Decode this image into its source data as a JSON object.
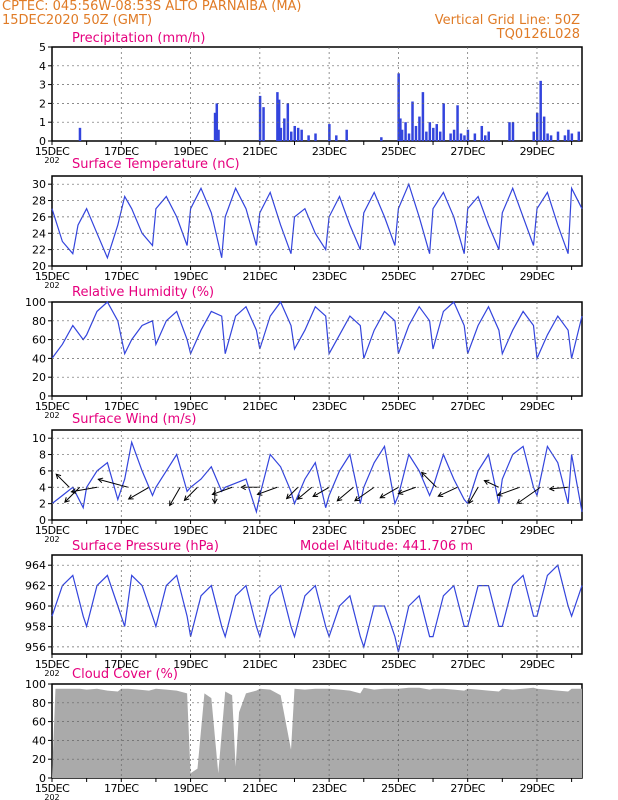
{
  "header": {
    "line1": "CPTEC:  045:56W-08:53S  ALTO PARNAIBA (MA)",
    "line2": "15DEC2020 50Z (GMT)",
    "grid_note": "Vertical Grid Line: 50Z",
    "code": "TQ0126L028",
    "model_altitude": "Model Altitude: 441.706 m"
  },
  "colors": {
    "header": "#e07b26",
    "title": "#e6007e",
    "line": "#3344dd",
    "bar": "#3344dd",
    "cloud": "#aaaaaa",
    "arrow": "#000000"
  },
  "x_axis": {
    "labels": [
      "15DEC",
      "17DEC",
      "19DEC",
      "21DEC",
      "23DEC",
      "25DEC",
      "27DEC",
      "29DEC"
    ],
    "label_days": [
      0,
      2,
      4,
      6,
      8,
      10,
      12,
      14
    ],
    "day_range": [
      0,
      15.3
    ],
    "year_fragment": "202"
  },
  "chart_data": [
    {
      "type": "bar",
      "title": "Precipitation (mm/h)",
      "ylim": [
        0,
        5
      ],
      "yticks": [
        0,
        1,
        2,
        3,
        4,
        5
      ],
      "x": [
        0.8,
        4.7,
        4.75,
        4.8,
        6.0,
        6.1,
        6.5,
        6.55,
        6.6,
        6.7,
        6.8,
        6.9,
        7.0,
        7.1,
        7.2,
        7.4,
        7.6,
        8.0,
        8.2,
        8.5,
        9.5,
        10.0,
        10.05,
        10.1,
        10.2,
        10.3,
        10.4,
        10.5,
        10.6,
        10.7,
        10.8,
        10.9,
        11.0,
        11.1,
        11.2,
        11.3,
        11.5,
        11.6,
        11.7,
        11.8,
        11.9,
        12.0,
        12.2,
        12.4,
        12.5,
        12.6,
        13.2,
        13.3,
        13.9,
        14.0,
        14.1,
        14.2,
        14.3,
        14.4,
        14.6,
        14.8,
        14.9,
        15.0,
        15.2
      ],
      "values": [
        0.7,
        1.5,
        2.0,
        0.6,
        2.4,
        1.8,
        2.6,
        2.2,
        0.7,
        1.2,
        2.0,
        0.5,
        0.8,
        0.7,
        0.6,
        0.3,
        0.4,
        0.9,
        0.3,
        0.6,
        0.2,
        3.6,
        1.2,
        0.6,
        1.0,
        0.4,
        2.1,
        0.8,
        1.3,
        2.6,
        0.5,
        1.0,
        0.7,
        0.9,
        0.5,
        2.0,
        0.4,
        0.6,
        1.9,
        0.4,
        0.3,
        0.6,
        0.4,
        0.8,
        0.3,
        0.5,
        1.0,
        1.0,
        0.5,
        1.5,
        3.2,
        1.3,
        0.4,
        0.3,
        0.5,
        0.3,
        0.6,
        0.4,
        0.5
      ]
    },
    {
      "type": "line",
      "title": "Surface Temperature (nC)",
      "ylim": [
        20,
        31
      ],
      "yticks": [
        20,
        22,
        24,
        26,
        28,
        30
      ],
      "x": [
        0,
        0.3,
        0.6,
        0.75,
        1.0,
        1.3,
        1.6,
        1.9,
        2.1,
        2.3,
        2.6,
        2.9,
        3.0,
        3.3,
        3.6,
        3.9,
        4.0,
        4.3,
        4.6,
        4.9,
        5.0,
        5.3,
        5.6,
        5.9,
        6.0,
        6.3,
        6.6,
        6.9,
        7.0,
        7.3,
        7.6,
        7.9,
        8.0,
        8.3,
        8.6,
        8.9,
        9.0,
        9.3,
        9.6,
        9.9,
        10.0,
        10.3,
        10.6,
        10.9,
        11.0,
        11.3,
        11.6,
        11.9,
        12.0,
        12.3,
        12.6,
        12.9,
        13.0,
        13.3,
        13.6,
        13.9,
        14.0,
        14.3,
        14.6,
        14.9,
        15.0,
        15.3
      ],
      "values": [
        27,
        23,
        21.5,
        25,
        27,
        24,
        21,
        25,
        28.5,
        27,
        24,
        22.5,
        27,
        28.5,
        26,
        22.5,
        27,
        29.5,
        26.5,
        21,
        26,
        29.5,
        27,
        22.5,
        26.5,
        29,
        25,
        21.5,
        26,
        27,
        24,
        22,
        26,
        28.5,
        25,
        22,
        26.5,
        29,
        26,
        22.5,
        27,
        30,
        26,
        21.5,
        27,
        29,
        26,
        21.5,
        27,
        28.5,
        25,
        22,
        26.5,
        29.5,
        26,
        22.5,
        27,
        29,
        25,
        21.5,
        29.5,
        27
      ]
    },
    {
      "type": "line",
      "title": "Relative Humidity (%)",
      "ylim": [
        0,
        100
      ],
      "yticks": [
        0,
        20,
        40,
        60,
        80,
        100
      ],
      "x": [
        0,
        0.3,
        0.6,
        0.9,
        1.0,
        1.3,
        1.6,
        1.9,
        2.1,
        2.3,
        2.6,
        2.9,
        3.0,
        3.3,
        3.6,
        3.9,
        4.0,
        4.3,
        4.6,
        4.9,
        5.0,
        5.3,
        5.6,
        5.9,
        6.0,
        6.3,
        6.6,
        6.9,
        7.0,
        7.3,
        7.6,
        7.9,
        8.0,
        8.3,
        8.6,
        8.9,
        9.0,
        9.3,
        9.6,
        9.9,
        10.0,
        10.3,
        10.6,
        10.9,
        11.0,
        11.3,
        11.6,
        11.9,
        12.0,
        12.3,
        12.6,
        12.9,
        13.0,
        13.3,
        13.6,
        13.9,
        14.0,
        14.3,
        14.6,
        14.9,
        15.0,
        15.3
      ],
      "values": [
        40,
        55,
        75,
        60,
        65,
        90,
        100,
        80,
        45,
        60,
        75,
        80,
        55,
        80,
        90,
        60,
        45,
        70,
        90,
        85,
        45,
        85,
        95,
        70,
        50,
        85,
        100,
        75,
        50,
        70,
        95,
        85,
        45,
        65,
        85,
        75,
        40,
        70,
        90,
        80,
        45,
        75,
        95,
        80,
        50,
        90,
        100,
        75,
        45,
        75,
        95,
        70,
        45,
        70,
        90,
        75,
        40,
        65,
        85,
        70,
        40,
        85
      ]
    },
    {
      "type": "line",
      "title": "Surface Wind (m/s)",
      "ylim": [
        0,
        11
      ],
      "yticks": [
        0,
        2,
        4,
        6,
        8,
        10
      ],
      "x": [
        0,
        0.3,
        0.6,
        0.9,
        1.0,
        1.3,
        1.6,
        1.9,
        2.1,
        2.3,
        2.6,
        2.9,
        3.0,
        3.3,
        3.6,
        3.9,
        4.0,
        4.3,
        4.6,
        4.9,
        5.0,
        5.3,
        5.6,
        5.9,
        6.0,
        6.3,
        6.6,
        6.9,
        7.0,
        7.3,
        7.6,
        7.9,
        8.0,
        8.3,
        8.6,
        8.9,
        9.0,
        9.3,
        9.6,
        9.9,
        10.0,
        10.3,
        10.6,
        10.9,
        11.0,
        11.3,
        11.6,
        11.9,
        12.0,
        12.3,
        12.6,
        12.9,
        13.0,
        13.3,
        13.6,
        13.9,
        14.0,
        14.3,
        14.6,
        14.9,
        15.0,
        15.3
      ],
      "values": [
        2,
        3,
        4,
        1.5,
        4,
        6,
        7,
        2.5,
        5,
        9.5,
        6,
        3,
        4,
        6,
        8,
        3.5,
        4,
        5,
        6.5,
        3.5,
        4,
        4.5,
        5,
        1,
        3,
        8,
        6.5,
        3.5,
        2,
        5,
        7,
        1.5,
        3,
        6,
        8,
        2,
        4,
        7,
        9,
        2,
        3,
        8,
        6,
        3,
        4,
        8,
        5,
        2.5,
        2,
        6,
        8,
        2,
        5,
        8,
        9,
        4,
        3,
        9,
        7,
        2,
        8,
        1
      ],
      "arrows": [
        {
          "day": 0.5,
          "speed": 2.5,
          "angle": 135
        },
        {
          "day": 0.8,
          "speed": 3.0,
          "angle": 225
        },
        {
          "day": 1.3,
          "speed": 4.0,
          "angle": 190
        },
        {
          "day": 2.2,
          "speed": 5.0,
          "angle": 165
        },
        {
          "day": 2.8,
          "speed": 3.5,
          "angle": 210
        },
        {
          "day": 3.7,
          "speed": 3.0,
          "angle": 240
        },
        {
          "day": 4.2,
          "speed": 2.5,
          "angle": 225
        },
        {
          "day": 4.7,
          "speed": 2.0,
          "angle": 270
        },
        {
          "day": 5.2,
          "speed": 3.0,
          "angle": 200
        },
        {
          "day": 6.0,
          "speed": 2.5,
          "angle": 180
        },
        {
          "day": 6.5,
          "speed": 3.0,
          "angle": 200
        },
        {
          "day": 7.1,
          "speed": 2.0,
          "angle": 225
        },
        {
          "day": 7.5,
          "speed": 2.5,
          "angle": 220
        },
        {
          "day": 8.0,
          "speed": 2.5,
          "angle": 210
        },
        {
          "day": 8.7,
          "speed": 3.0,
          "angle": 220
        },
        {
          "day": 9.3,
          "speed": 3.5,
          "angle": 215
        },
        {
          "day": 10.0,
          "speed": 3.0,
          "angle": 210
        },
        {
          "day": 10.5,
          "speed": 2.5,
          "angle": 200
        },
        {
          "day": 11.1,
          "speed": 3.0,
          "angle": 135
        },
        {
          "day": 11.7,
          "speed": 3.0,
          "angle": 205
        },
        {
          "day": 12.3,
          "speed": 2.5,
          "angle": 240
        },
        {
          "day": 12.9,
          "speed": 2.0,
          "angle": 155
        },
        {
          "day": 13.5,
          "speed": 3.5,
          "angle": 200
        },
        {
          "day": 14.1,
          "speed": 4.5,
          "angle": 215
        },
        {
          "day": 14.9,
          "speed": 2.5,
          "angle": 185
        }
      ]
    },
    {
      "type": "line",
      "title": "Surface Pressure (hPa)",
      "ylim": [
        955.3,
        965
      ],
      "yticks": [
        956,
        958,
        960,
        962,
        964
      ],
      "x": [
        0,
        0.3,
        0.6,
        0.9,
        1.0,
        1.3,
        1.6,
        1.9,
        2.1,
        2.3,
        2.6,
        2.9,
        3.0,
        3.3,
        3.6,
        3.9,
        4.0,
        4.3,
        4.6,
        4.9,
        5.0,
        5.3,
        5.6,
        5.9,
        6.0,
        6.3,
        6.6,
        6.9,
        7.0,
        7.3,
        7.6,
        7.9,
        8.0,
        8.3,
        8.6,
        8.9,
        9.0,
        9.3,
        9.6,
        9.9,
        10.0,
        10.3,
        10.6,
        10.9,
        11.0,
        11.3,
        11.6,
        11.9,
        12.0,
        12.3,
        12.6,
        12.9,
        13.0,
        13.3,
        13.6,
        13.9,
        14.0,
        14.3,
        14.6,
        14.9,
        15.0,
        15.3
      ],
      "values": [
        959,
        962,
        963,
        959,
        958,
        962,
        963,
        960,
        958,
        963,
        962,
        959,
        958,
        962,
        963,
        959,
        957,
        961,
        962,
        958,
        957,
        961,
        962,
        958,
        957,
        961,
        962,
        958,
        957,
        961,
        962,
        958,
        957,
        960,
        961,
        957,
        956,
        960,
        960,
        957,
        955.5,
        960,
        961,
        957,
        957,
        961,
        962,
        958,
        958,
        962,
        962,
        958,
        958,
        962,
        963,
        959,
        959,
        963,
        964,
        960,
        959,
        962
      ]
    },
    {
      "type": "area",
      "title": "Cloud Cover (%)",
      "ylim": [
        0,
        100
      ],
      "yticks": [
        0,
        20,
        40,
        60,
        80,
        100
      ],
      "x": [
        0,
        0.1,
        0.2,
        0.5,
        0.8,
        1.0,
        1.3,
        1.6,
        1.9,
        2.0,
        2.2,
        2.5,
        2.8,
        3.0,
        3.3,
        3.6,
        3.9,
        4.0,
        4.2,
        4.4,
        4.6,
        4.8,
        5.0,
        5.2,
        5.3,
        5.4,
        5.6,
        5.9,
        6.0,
        6.3,
        6.6,
        6.9,
        7.0,
        7.3,
        7.6,
        7.9,
        8.0,
        8.3,
        8.6,
        8.9,
        9.0,
        9.3,
        9.6,
        9.9,
        10.0,
        10.3,
        10.6,
        10.9,
        11.0,
        11.3,
        11.6,
        11.9,
        12.0,
        12.3,
        12.6,
        12.9,
        13.0,
        13.3,
        13.6,
        13.9,
        14.0,
        14.3,
        14.6,
        14.9,
        15.0,
        15.2,
        15.3
      ],
      "values": [
        0,
        95,
        95,
        95,
        95,
        94,
        95,
        93,
        92,
        95,
        95,
        94,
        93,
        95,
        94,
        93,
        90,
        5,
        10,
        90,
        85,
        5,
        92,
        88,
        12,
        70,
        90,
        93,
        95,
        94,
        88,
        30,
        95,
        94,
        95,
        95,
        95,
        94,
        93,
        90,
        96,
        94,
        95,
        95,
        95,
        96,
        96,
        94,
        95,
        95,
        94,
        93,
        95,
        94,
        93,
        92,
        95,
        94,
        95,
        96,
        95,
        94,
        93,
        92,
        95,
        95,
        95
      ]
    }
  ]
}
